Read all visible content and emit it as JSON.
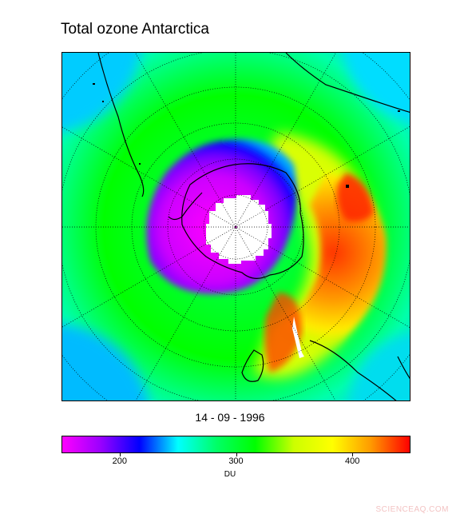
{
  "title": "Total ozone Antarctica",
  "date": "14 - 09 - 1996",
  "colorbar": {
    "min": 150,
    "max": 450,
    "unit": "DU",
    "ticks": [
      {
        "value": 200,
        "label": "200"
      },
      {
        "value": 300,
        "label": "300"
      },
      {
        "value": 400,
        "label": "400"
      }
    ],
    "colors": [
      "#ff00ff",
      "#9900ff",
      "#0000ff",
      "#00ffff",
      "#00ff66",
      "#00ff00",
      "#ccff00",
      "#ffff00",
      "#ff9900",
      "#ff0000"
    ]
  },
  "map": {
    "projection": "south-polar-stereographic",
    "polar_night_fill": "#ffffff",
    "coastline_color": "#000000"
  },
  "watermark": "SCIENCEAQ.COM"
}
